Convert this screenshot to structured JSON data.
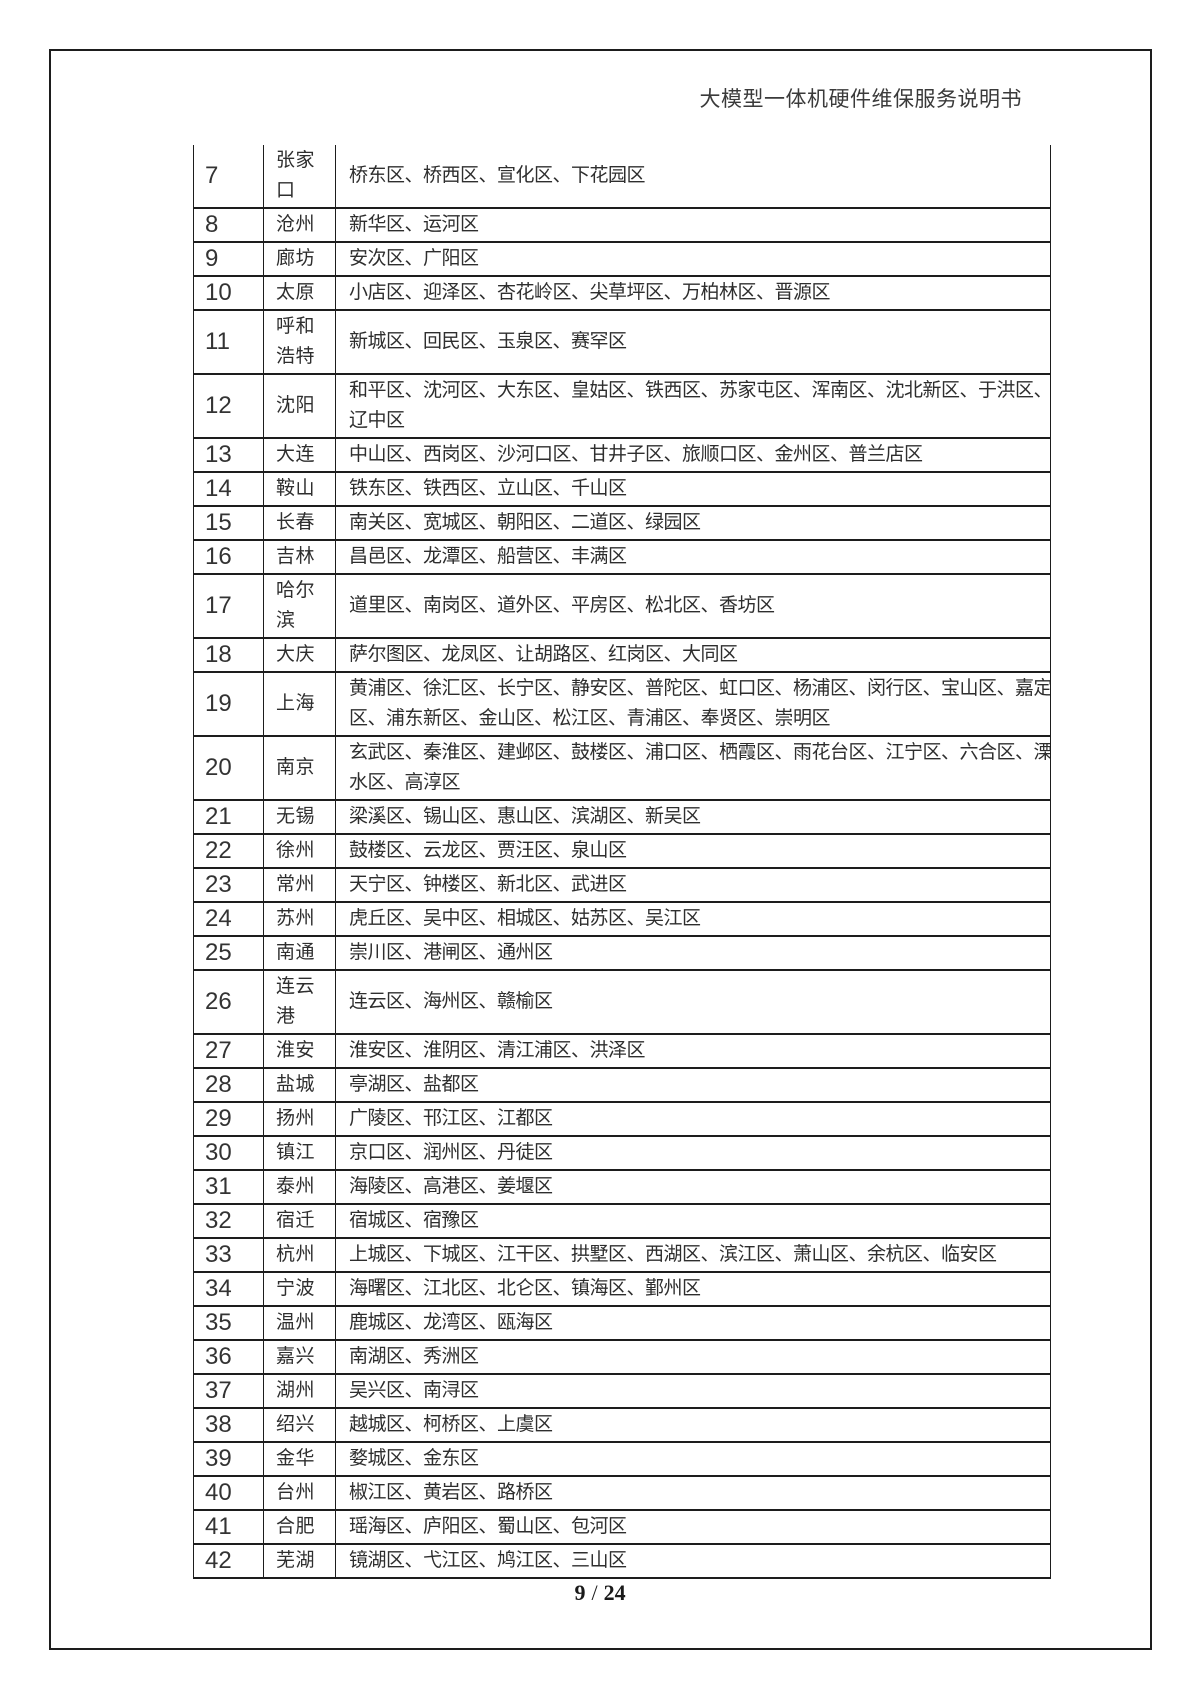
{
  "header": {
    "title": "大模型一体机硬件维保服务说明书"
  },
  "footer": {
    "current_page": "9",
    "separator": "/",
    "total_pages": "24"
  },
  "table": {
    "rows": [
      {
        "no": "7",
        "city": "张家\n口",
        "districts": "桥东区、桥西区、宣化区、下花园区"
      },
      {
        "no": "8",
        "city": "沧州",
        "districts": "新华区、运河区"
      },
      {
        "no": "9",
        "city": "廊坊",
        "districts": "安次区、广阳区"
      },
      {
        "no": "10",
        "city": "太原",
        "districts": "小店区、迎泽区、杏花岭区、尖草坪区、万柏林区、晋源区"
      },
      {
        "no": "11",
        "city": "呼和\n浩特",
        "districts": "新城区、回民区、玉泉区、赛罕区"
      },
      {
        "no": "12",
        "city": "沈阳",
        "districts": "和平区、沈河区、大东区、皇姑区、铁西区、苏家屯区、浑南区、沈北新区、于洪区、\n辽中区"
      },
      {
        "no": "13",
        "city": "大连",
        "districts": "中山区、西岗区、沙河口区、甘井子区、旅顺口区、金州区、普兰店区"
      },
      {
        "no": "14",
        "city": "鞍山",
        "districts": "铁东区、铁西区、立山区、千山区"
      },
      {
        "no": "15",
        "city": "长春",
        "districts": "南关区、宽城区、朝阳区、二道区、绿园区"
      },
      {
        "no": "16",
        "city": "吉林",
        "districts": "昌邑区、龙潭区、船营区、丰满区"
      },
      {
        "no": "17",
        "city": "哈尔\n滨",
        "districts": "道里区、南岗区、道外区、平房区、松北区、香坊区"
      },
      {
        "no": "18",
        "city": "大庆",
        "districts": "萨尔图区、龙凤区、让胡路区、红岗区、大同区"
      },
      {
        "no": "19",
        "city": "上海",
        "districts": "黄浦区、徐汇区、长宁区、静安区、普陀区、虹口区、杨浦区、闵行区、宝山区、嘉定\n区、浦东新区、金山区、松江区、青浦区、奉贤区、崇明区"
      },
      {
        "no": "20",
        "city": "南京",
        "districts": "玄武区、秦淮区、建邺区、鼓楼区、浦口区、栖霞区、雨花台区、江宁区、六合区、溧\n水区、高淳区"
      },
      {
        "no": "21",
        "city": "无锡",
        "districts": "梁溪区、锡山区、惠山区、滨湖区、新吴区"
      },
      {
        "no": "22",
        "city": "徐州",
        "districts": "鼓楼区、云龙区、贾汪区、泉山区"
      },
      {
        "no": "23",
        "city": "常州",
        "districts": "天宁区、钟楼区、新北区、武进区"
      },
      {
        "no": "24",
        "city": "苏州",
        "districts": "虎丘区、吴中区、相城区、姑苏区、吴江区"
      },
      {
        "no": "25",
        "city": "南通",
        "districts": "崇川区、港闸区、通州区"
      },
      {
        "no": "26",
        "city": "连云\n港",
        "districts": "连云区、海州区、赣榆区"
      },
      {
        "no": "27",
        "city": "淮安",
        "districts": "淮安区、淮阴区、清江浦区、洪泽区"
      },
      {
        "no": "28",
        "city": "盐城",
        "districts": "亭湖区、盐都区"
      },
      {
        "no": "29",
        "city": "扬州",
        "districts": "广陵区、邗江区、江都区"
      },
      {
        "no": "30",
        "city": "镇江",
        "districts": "京口区、润州区、丹徒区"
      },
      {
        "no": "31",
        "city": "泰州",
        "districts": "海陵区、高港区、姜堰区"
      },
      {
        "no": "32",
        "city": "宿迁",
        "districts": "宿城区、宿豫区"
      },
      {
        "no": "33",
        "city": "杭州",
        "districts": "上城区、下城区、江干区、拱墅区、西湖区、滨江区、萧山区、余杭区、临安区"
      },
      {
        "no": "34",
        "city": "宁波",
        "districts": "海曙区、江北区、北仑区、镇海区、鄞州区"
      },
      {
        "no": "35",
        "city": "温州",
        "districts": "鹿城区、龙湾区、瓯海区"
      },
      {
        "no": "36",
        "city": "嘉兴",
        "districts": "南湖区、秀洲区"
      },
      {
        "no": "37",
        "city": "湖州",
        "districts": "吴兴区、南浔区"
      },
      {
        "no": "38",
        "city": "绍兴",
        "districts": "越城区、柯桥区、上虞区"
      },
      {
        "no": "39",
        "city": "金华",
        "districts": "婺城区、金东区"
      },
      {
        "no": "40",
        "city": "台州",
        "districts": "椒江区、黄岩区、路桥区"
      },
      {
        "no": "41",
        "city": "合肥",
        "districts": "瑶海区、庐阳区、蜀山区、包河区"
      },
      {
        "no": "42",
        "city": "芜湖",
        "districts": "镜湖区、弋江区、鸠江区、三山区"
      }
    ]
  }
}
